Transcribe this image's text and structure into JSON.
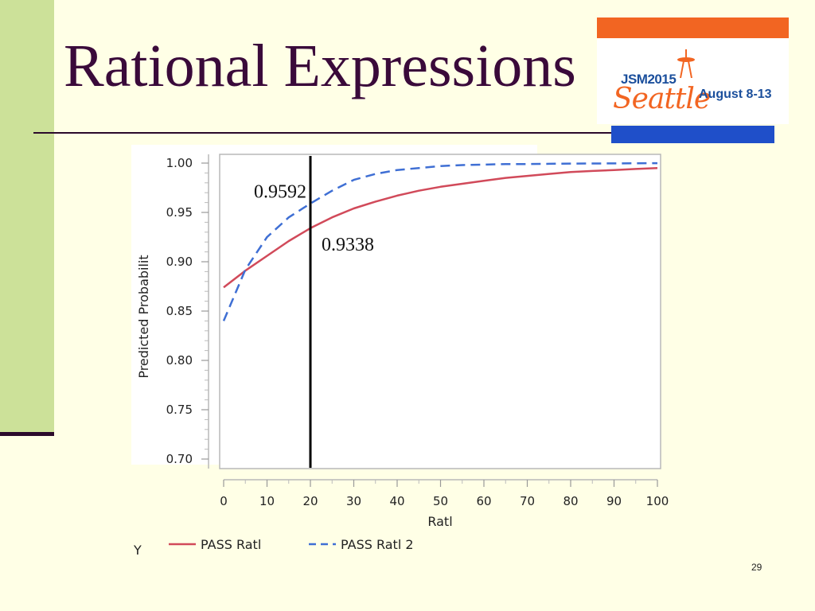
{
  "slide": {
    "title": "Rational Expressions",
    "page_number": "29"
  },
  "logo": {
    "line1": "JSM2015",
    "line2": "Seattle",
    "dates": "August 8-13",
    "colors": {
      "orange": "#f26522",
      "blue": "#1b4f9c",
      "bar": "#1f4fc9"
    }
  },
  "chart_data": {
    "type": "line",
    "xlabel": "Ratl",
    "ylabel": "Predicted Probabilit",
    "xlim": [
      0,
      100
    ],
    "ylim": [
      0.7,
      1.0
    ],
    "xticks": [
      0,
      10,
      20,
      30,
      40,
      50,
      60,
      70,
      80,
      90,
      100
    ],
    "xtick_labels": [
      "0",
      "10",
      "20",
      "30",
      "40",
      "50",
      "60",
      "70",
      "80",
      "90",
      "100"
    ],
    "yticks": [
      0.7,
      0.75,
      0.8,
      0.85,
      0.9,
      0.95,
      1.0
    ],
    "ytick_labels": [
      "0.70",
      "0.75",
      "0.80",
      "0.85",
      "0.90",
      "0.95",
      "1.00"
    ],
    "grid": false,
    "legend_title": "Y",
    "legend_placement": "bottom",
    "x": [
      0,
      5,
      10,
      15,
      20,
      25,
      30,
      35,
      40,
      45,
      50,
      55,
      60,
      65,
      70,
      75,
      80,
      85,
      90,
      95,
      100
    ],
    "series": [
      {
        "name": "PASS Ratl",
        "color": "#d14a5a",
        "style": "solid",
        "values": [
          0.874,
          0.891,
          0.906,
          0.921,
          0.934,
          0.945,
          0.954,
          0.961,
          0.967,
          0.972,
          0.976,
          0.979,
          0.982,
          0.985,
          0.987,
          0.989,
          0.991,
          0.992,
          0.993,
          0.994,
          0.995
        ]
      },
      {
        "name": "PASS Ratl 2",
        "color": "#3f6fd4",
        "style": "dashed",
        "values": [
          0.84,
          0.892,
          0.925,
          0.945,
          0.959,
          0.972,
          0.983,
          0.989,
          0.993,
          0.995,
          0.997,
          0.998,
          0.9985,
          0.999,
          0.999,
          0.9993,
          0.9995,
          0.9996,
          0.9997,
          0.9998,
          0.9999
        ]
      }
    ],
    "reference_line": {
      "x": 20,
      "color": "#000000"
    },
    "annotations": [
      {
        "text": "0.9592",
        "x": 20,
        "y": 0.9592,
        "anchor": "end"
      },
      {
        "text": "0.9338",
        "x": 20,
        "y": 0.9338,
        "anchor": "start"
      }
    ]
  }
}
